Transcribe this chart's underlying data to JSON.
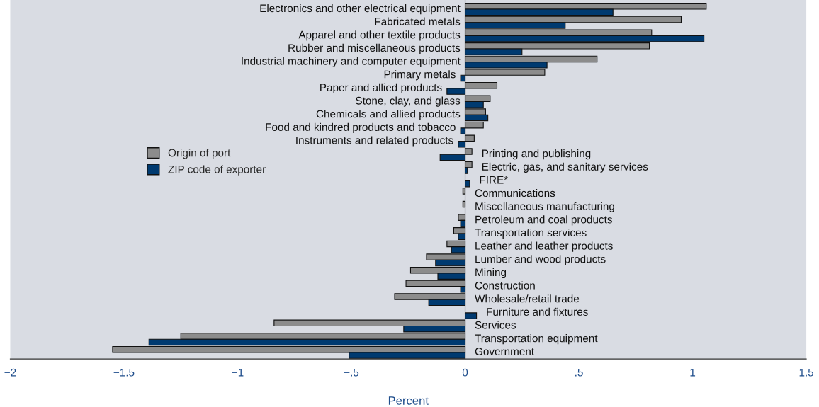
{
  "chart_data": {
    "type": "bar",
    "orientation": "horizontal",
    "xlabel": "Percent",
    "categories": [
      "Electronics and other electrical equipment",
      "Fabricated metals",
      "Apparel and other textile products",
      "Rubber and miscellaneous products",
      "Industrial machinery and computer equipment",
      "Primary metals",
      "Paper and allied products",
      "Stone, clay, and glass",
      "Chemicals and allied products",
      "Food and kindred products and tobacco",
      "Instruments and related products",
      "Printing and publishing",
      "Electric, gas, and sanitary services",
      "FIRE*",
      "Communications",
      "Miscellaneous manufacturing",
      "Petroleum and coal products",
      "Transportation services",
      "Leather and leather products",
      "Lumber and wood products",
      "Mining",
      "Construction",
      "Wholesale/retail trade",
      "Furniture and fixtures",
      "Services",
      "Transportation equipment",
      "Government"
    ],
    "series": [
      {
        "name": "Origin of port",
        "color": "#8c8c8c",
        "values": [
          1.06,
          0.95,
          0.82,
          0.81,
          0.58,
          0.35,
          0.14,
          0.11,
          0.09,
          0.08,
          0.04,
          0.03,
          0.03,
          null,
          -0.01,
          -0.01,
          -0.03,
          -0.05,
          -0.08,
          -0.17,
          -0.24,
          -0.26,
          -0.31,
          null,
          -0.84,
          -1.25,
          -1.55
        ]
      },
      {
        "name": "ZIP code of exporter",
        "color": "#003a70",
        "values": [
          0.65,
          0.44,
          1.05,
          0.25,
          0.36,
          -0.02,
          -0.08,
          0.08,
          0.1,
          -0.02,
          -0.03,
          -0.11,
          0.01,
          0.02,
          null,
          null,
          -0.02,
          -0.03,
          -0.06,
          -0.13,
          -0.12,
          -0.02,
          -0.16,
          0.05,
          -0.27,
          -1.39,
          -0.51
        ]
      }
    ],
    "xlim": [
      -2,
      1.5
    ],
    "xticks": [
      {
        "value": -2,
        "label": "−2"
      },
      {
        "value": -1.5,
        "label": "−1.5"
      },
      {
        "value": -1,
        "label": "−1"
      },
      {
        "value": -0.5,
        "label": "−.5"
      },
      0,
      {
        "value": 0.5,
        "label": ".5"
      },
      1,
      1.5
    ],
    "legend": "left",
    "grid": false
  }
}
